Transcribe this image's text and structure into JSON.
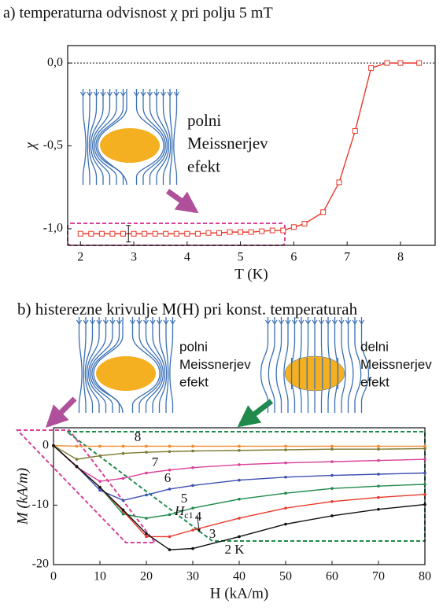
{
  "chart_data": [
    {
      "type": "line",
      "title": "a) temperaturna odvisnost χ pri polju 5 mT",
      "x_label": "T (K)",
      "y_label": "χ",
      "x": [
        2.0,
        2.2,
        2.4,
        2.6,
        2.8,
        3.0,
        3.2,
        3.4,
        3.6,
        3.8,
        4.0,
        4.2,
        4.4,
        4.6,
        4.8,
        5.0,
        5.2,
        5.4,
        5.6,
        5.8,
        6.0,
        6.2,
        6.55,
        6.85,
        7.15,
        7.45,
        7.75,
        8.0,
        8.35
      ],
      "values": [
        -1.03,
        -1.03,
        -1.03,
        -1.03,
        -1.03,
        -1.03,
        -1.03,
        -1.03,
        -1.03,
        -1.03,
        -1.03,
        -1.03,
        -1.025,
        -1.025,
        -1.02,
        -1.02,
        -1.02,
        -1.015,
        -1.01,
        -1.01,
        -0.99,
        -0.97,
        -0.9,
        -0.72,
        -0.41,
        -0.03,
        0,
        0,
        0
      ],
      "color": "#e8392a",
      "marker": "square",
      "error_bar": {
        "x": 2.9,
        "y": -1.03,
        "error": 0.05
      },
      "reference_line": 0,
      "xlim": [
        1.76,
        8.65
      ],
      "xticks": [
        2,
        3,
        4,
        5,
        6,
        7,
        8
      ],
      "ylim": [
        -1.1,
        0.105
      ],
      "yticks": [
        {
          "value": 0,
          "label": "0,0"
        },
        {
          "value": -0.5,
          "label": "-0,5"
        },
        {
          "value": -1,
          "label": "-1,0"
        }
      ],
      "diagram_labels": [
        [
          "polni",
          "Meissnerjev",
          "efekt"
        ]
      ]
    },
    {
      "type": "line",
      "title": "b) histerezne krivulje M(H) pri konst. temperaturah",
      "x_label": "H (kA/m)",
      "y_label": "M (kA/m)",
      "x": [
        0,
        5,
        10,
        15,
        20,
        25,
        30,
        40,
        50,
        60,
        70,
        80
      ],
      "series": [
        {
          "name": "8",
          "color": "#f08a2c",
          "values": [
            0,
            -0.1,
            -0.1,
            -0.1,
            -0.1,
            -0.1,
            -0.1,
            -0.1,
            -0.1,
            -0.1,
            -0.1,
            -0.1
          ]
        },
        {
          "name": "7",
          "color": "#7d7a32",
          "values": [
            0,
            -2.3,
            -1.7,
            -1.3,
            -1.1,
            -1.0,
            -0.9,
            -0.8,
            -0.7,
            -0.6,
            -0.6,
            -0.5
          ]
        },
        {
          "name": "6",
          "color": "#d8409a",
          "values": [
            0,
            -3.6,
            -6.0,
            -5.5,
            -4.6,
            -4.1,
            -3.7,
            -3.2,
            -2.9,
            -2.7,
            -2.5,
            -2.3
          ]
        },
        {
          "name": "5",
          "color": "#3a4fb0",
          "values": [
            0,
            -3.5,
            -7.5,
            -9.2,
            -8.3,
            -7.3,
            -6.7,
            -5.8,
            -5.3,
            -5.0,
            -4.8,
            -4.6
          ]
        },
        {
          "name": "4",
          "color": "#1f8a4c",
          "values": [
            0,
            -3.5,
            -7.0,
            -11.5,
            -12.2,
            -11.6,
            -10.5,
            -9.0,
            -8.0,
            -7.2,
            -6.8,
            -6.5
          ]
        },
        {
          "name": "3",
          "color": "#e8392a",
          "values": [
            0,
            -3.5,
            -7.0,
            -11.0,
            -15.3,
            -15.3,
            -14.2,
            -12.2,
            -10.5,
            -9.4,
            -8.7,
            -8.2
          ]
        },
        {
          "name": "2 K",
          "color": "#111111",
          "values": [
            0,
            -3.5,
            -7.0,
            -10.8,
            -14.8,
            -17.5,
            -17.3,
            -15.3,
            -13.2,
            -11.8,
            -10.7,
            -9.9
          ]
        }
      ],
      "annotation": {
        "text": "H",
        "subscript": "c1"
      },
      "xlim": [
        0,
        80
      ],
      "xticks": [
        0,
        10,
        20,
        30,
        40,
        50,
        60,
        70,
        80
      ],
      "ylim": [
        -20,
        3
      ],
      "yticks": [
        0,
        -10,
        -20
      ],
      "diagram_labels": [
        [
          "polni",
          "Meissnerjev",
          "efekt"
        ],
        [
          "delni",
          "Meissnerjev",
          "efekt"
        ]
      ]
    }
  ]
}
